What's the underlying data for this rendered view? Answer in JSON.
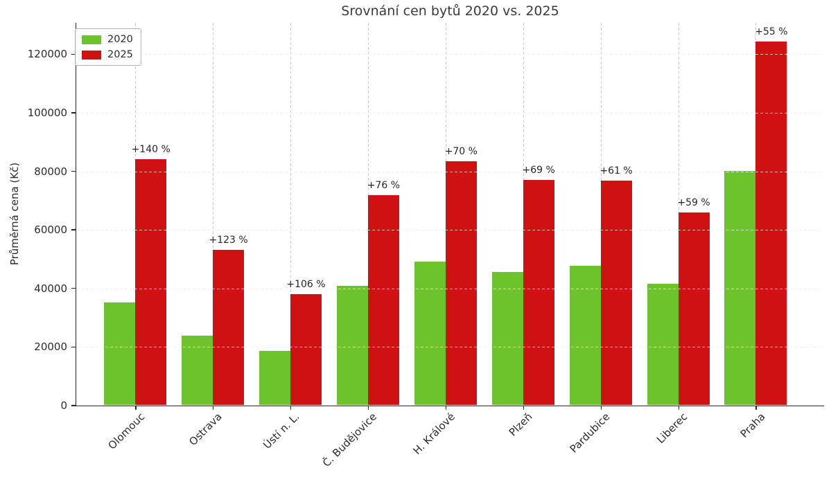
{
  "chart_data": {
    "type": "bar",
    "title": "Srovnání cen bytů 2020 vs. 2025",
    "ylabel": "Průměrná cena (Kč)",
    "xlabel": "",
    "categories": [
      "Olomouc",
      "Ostrava",
      "Ústí n. L.",
      "Č. Budějovice",
      "H. Králové",
      "Plzeň",
      "Pardubice",
      "Liberec",
      "Praha"
    ],
    "series": [
      {
        "name": "2020",
        "color": "#6cc32c",
        "values": [
          35000,
          23700,
          18400,
          40700,
          49000,
          45400,
          47500,
          41400,
          80000
        ]
      },
      {
        "name": "2025",
        "color": "#cf1111",
        "values": [
          84000,
          52900,
          37900,
          71500,
          83300,
          76700,
          76500,
          65800,
          124000
        ]
      }
    ],
    "annotations": [
      "+140 %",
      "+123 %",
      "+106 %",
      "+76 %",
      "+70 %",
      "+69 %",
      "+61 %",
      "+59 %",
      "+55 %"
    ],
    "yticks": [
      0,
      20000,
      40000,
      60000,
      80000,
      100000,
      120000
    ],
    "ylim": [
      0,
      130700
    ],
    "grid": "dashed-both-axes",
    "legend_position": "upper-left",
    "background": "#ffffff",
    "text_color": "#262626",
    "grid_color": "#c9c9c9"
  }
}
